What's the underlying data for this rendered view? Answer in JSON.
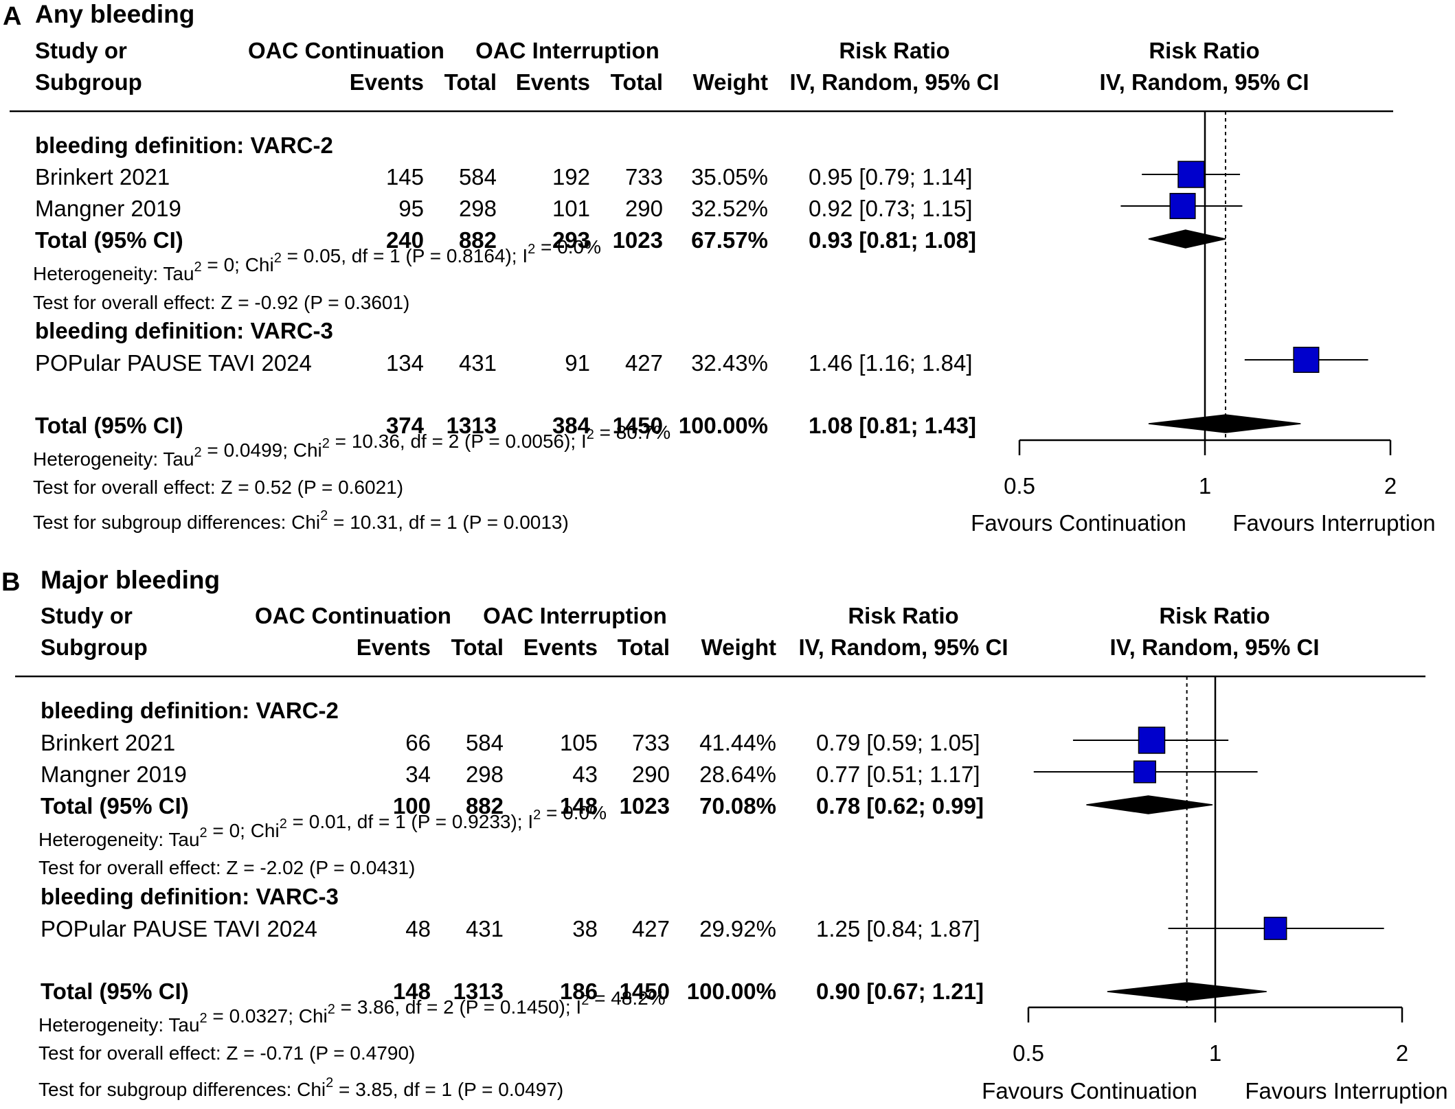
{
  "chart_data": [
    {
      "type": "forest",
      "panel_label": "A",
      "title": "Any bleeding",
      "header": {
        "study_1": "Study or",
        "study_2": "Subgroup",
        "group1": "OAC Continuation",
        "group2": "OAC Interruption",
        "events": "Events",
        "total": "Total",
        "weight": "Weight",
        "rr_1": "Risk Ratio",
        "rr_2": "IV, Random, 95% CI"
      },
      "subgroups": [
        {
          "label": "bleeding definition: VARC-2",
          "studies": [
            {
              "name": "Brinkert 2021",
              "e1": "145",
              "n1": "584",
              "e2": "192",
              "n2": "733",
              "weight": "35.05%",
              "ci_text": "0.95 [0.79; 1.14]",
              "rr": 0.95,
              "lo": 0.79,
              "hi": 1.14,
              "w": 35.05
            },
            {
              "name": "Mangner 2019",
              "e1": "95",
              "n1": "298",
              "e2": "101",
              "n2": "290",
              "weight": "32.52%",
              "ci_text": "0.92 [0.73; 1.15]",
              "rr": 0.92,
              "lo": 0.73,
              "hi": 1.15,
              "w": 32.52
            }
          ],
          "total": {
            "label": "Total (95% CI)",
            "e1": "240",
            "n1": "882",
            "e2": "293",
            "n2": "1023",
            "weight": "67.57%",
            "ci_text": "0.93 [0.81; 1.08]",
            "rr": 0.93,
            "lo": 0.81,
            "hi": 1.08
          },
          "het": {
            "a": "Heterogeneity: Tau",
            "b": " = 0; Chi",
            "c": " = 0.05, df = 1 (P = 0.8164); I",
            "d": " = 0.0%"
          },
          "effect": "Test for overall effect: Z = -0.92 (P = 0.3601)"
        },
        {
          "label": "bleeding definition: VARC-3",
          "studies": [
            {
              "name": "POPular PAUSE TAVI 2024",
              "e1": "134",
              "n1": "431",
              "e2": "91",
              "n2": "427",
              "weight": "32.43%",
              "ci_text": "1.46 [1.16; 1.84]",
              "rr": 1.46,
              "lo": 1.16,
              "hi": 1.84,
              "w": 32.43
            }
          ]
        }
      ],
      "overall": {
        "label": "Total (95% CI)",
        "e1": "374",
        "n1": "1313",
        "e2": "384",
        "n2": "1450",
        "weight": "100.00%",
        "ci_text": "1.08 [0.81; 1.43]",
        "rr": 1.08,
        "lo": 0.81,
        "hi": 1.43
      },
      "overall_het": {
        "a": "Heterogeneity: Tau",
        "b": " = 0.0499; Chi",
        "c": " = 10.36, df = 2 (P = 0.0056); I",
        "d": " = 80.7%"
      },
      "overall_effect": "Test for overall effect: Z = 0.52 (P = 0.6021)",
      "subgroup_diff": {
        "a": "Test for subgroup differences: Chi",
        "b": " = 10.31, df = 1 (P = 0.0013)"
      },
      "axis": {
        "ticks": [
          "0.5",
          "1",
          "2"
        ],
        "tick_values": [
          0.5,
          1,
          2
        ],
        "scale": "log",
        "left_label": "Favours Continuation",
        "right_label": "Favours Interruption"
      },
      "sup": "2",
      "marker_color": "#0000cc"
    },
    {
      "type": "forest",
      "panel_label": "B",
      "title": "Major bleeding",
      "header": {
        "study_1": "Study or",
        "study_2": "Subgroup",
        "group1": "OAC Continuation",
        "group2": "OAC Interruption",
        "events": "Events",
        "total": "Total",
        "weight": "Weight",
        "rr_1": "Risk Ratio",
        "rr_2": "IV, Random, 95% CI"
      },
      "subgroups": [
        {
          "label": "bleeding definition: VARC-2",
          "studies": [
            {
              "name": "Brinkert 2021",
              "e1": "66",
              "n1": "584",
              "e2": "105",
              "n2": "733",
              "weight": "41.44%",
              "ci_text": "0.79 [0.59; 1.05]",
              "rr": 0.79,
              "lo": 0.59,
              "hi": 1.05,
              "w": 41.44
            },
            {
              "name": "Mangner 2019",
              "e1": "34",
              "n1": "298",
              "e2": "43",
              "n2": "290",
              "weight": "28.64%",
              "ci_text": "0.77 [0.51; 1.17]",
              "rr": 0.77,
              "lo": 0.51,
              "hi": 1.17,
              "w": 28.64
            }
          ],
          "total": {
            "label": "Total (95% CI)",
            "e1": "100",
            "n1": "882",
            "e2": "148",
            "n2": "1023",
            "weight": "70.08%",
            "ci_text": "0.78 [0.62; 0.99]",
            "rr": 0.78,
            "lo": 0.62,
            "hi": 0.99
          },
          "het": {
            "a": "Heterogeneity: Tau",
            "b": " = 0; Chi",
            "c": " = 0.01, df = 1 (P = 0.9233); I",
            "d": " = 0.0%"
          },
          "effect": "Test for overall effect: Z = -2.02 (P = 0.0431)"
        },
        {
          "label": "bleeding definition: VARC-3",
          "studies": [
            {
              "name": "POPular PAUSE TAVI 2024",
              "e1": "48",
              "n1": "431",
              "e2": "38",
              "n2": "427",
              "weight": "29.92%",
              "ci_text": "1.25 [0.84; 1.87]",
              "rr": 1.25,
              "lo": 0.84,
              "hi": 1.87,
              "w": 29.92
            }
          ]
        }
      ],
      "overall": {
        "label": "Total (95% CI)",
        "e1": "148",
        "n1": "1313",
        "e2": "186",
        "n2": "1450",
        "weight": "100.00%",
        "ci_text": "0.90 [0.67; 1.21]",
        "rr": 0.9,
        "lo": 0.67,
        "hi": 1.21
      },
      "overall_het": {
        "a": "Heterogeneity: Tau",
        "b": " = 0.0327; Chi",
        "c": " = 3.86, df = 2 (P = 0.1450); I",
        "d": " = 48.2%"
      },
      "overall_effect": "Test for overall effect: Z = -0.71 (P = 0.4790)",
      "subgroup_diff": {
        "a": "Test for subgroup differences: Chi",
        "b": " = 3.85, df = 1 (P = 0.0497)"
      },
      "axis": {
        "ticks": [
          "0.5",
          "1",
          "2"
        ],
        "tick_values": [
          0.5,
          1,
          2
        ],
        "scale": "log",
        "left_label": "Favours Continuation",
        "right_label": "Favours Interruption"
      },
      "sup": "2",
      "marker_color": "#0000cc"
    }
  ]
}
